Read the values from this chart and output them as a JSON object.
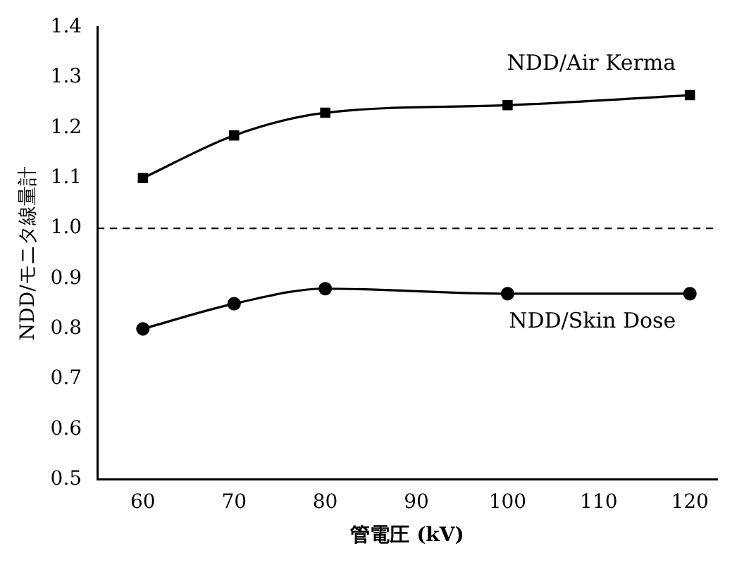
{
  "chart_data": {
    "type": "line",
    "xlabel": "管電圧 (kV)",
    "ylabel": "NDD/モニタ線量計",
    "x": [
      60,
      70,
      80,
      100,
      120
    ],
    "series": [
      {
        "name": "NDD/Air Kerma",
        "color": "#000000",
        "marker": "square",
        "values": [
          1.1,
          1.185,
          1.23,
          1.245,
          1.265
        ]
      },
      {
        "name": "NDD/Skin Dose",
        "color": "#000000",
        "marker": "circle",
        "values": [
          0.8,
          0.85,
          0.88,
          0.87,
          0.87
        ]
      }
    ],
    "xlim": [
      55,
      123
    ],
    "xticks": [
      60,
      70,
      80,
      90,
      100,
      110,
      120
    ],
    "ylim": [
      0.5,
      1.4
    ],
    "yticks": [
      {
        "value": 0.5,
        "label": "0.5"
      },
      {
        "value": 0.6,
        "label": "0.6"
      },
      {
        "value": 0.7,
        "label": "0.7"
      },
      {
        "value": 0.8,
        "label": "0.8"
      },
      {
        "value": 0.9,
        "label": "0.9"
      },
      {
        "value": 1,
        "label": "1.0"
      },
      {
        "value": 1.1,
        "label": "1.1"
      },
      {
        "value": 1.2,
        "label": "1.2"
      },
      {
        "value": 1.3,
        "label": "1.3"
      },
      {
        "value": 1.4,
        "label": "1.4"
      }
    ],
    "ref_lines": [
      {
        "axis": "y",
        "value": 1,
        "line_style": "dashed",
        "color": "#000000"
      }
    ],
    "grid": false,
    "legend": false,
    "line_style": "solid"
  }
}
